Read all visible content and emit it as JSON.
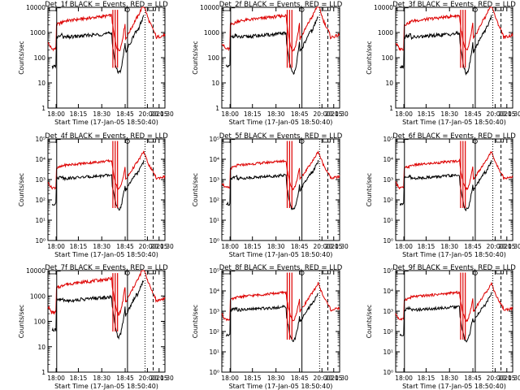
{
  "chart_data": [
    {
      "type": "line",
      "title": "Det_1f BLACK = Events, RED = LLD",
      "xlabel": "Start Time (17-Jan-05 18:50:40)",
      "ylabel": "Counts/sec",
      "x_ticks": [
        "18:00",
        "18:15",
        "18:30",
        "18:45",
        "20:00",
        "20:15",
        "20:30"
      ],
      "y_scale": "log",
      "ylim": [
        1,
        10000
      ],
      "y_ticks": [
        "1",
        "10",
        "100",
        "1000",
        "10000"
      ],
      "legend": "none",
      "grid": false,
      "colors": {
        "events": "#000000",
        "lld": "#dd0000"
      }
    },
    {
      "type": "line",
      "title": "Det_2f BLACK = Events, RED = LLD",
      "xlabel": "Start Time (17-Jan-05 18:50:40)",
      "ylabel": "Counts/sec",
      "x_ticks": [
        "18:00",
        "18:15",
        "18:30",
        "18:45",
        "20:00",
        "20:15",
        "20:30"
      ],
      "y_scale": "log",
      "ylim": [
        1,
        10000
      ],
      "y_ticks": [
        "1",
        "10",
        "100",
        "1000",
        "10000"
      ],
      "legend": "none",
      "grid": false,
      "colors": {
        "events": "#000000",
        "lld": "#dd0000"
      }
    },
    {
      "type": "line",
      "title": "Det_3f BLACK = Events, RED = LLD",
      "xlabel": "Start Time (17-Jan-05 18:50:40)",
      "ylabel": "Counts/sec",
      "x_ticks": [
        "18:00",
        "18:15",
        "18:30",
        "18:45",
        "20:00",
        "20:15",
        "20:30"
      ],
      "y_scale": "log",
      "ylim": [
        1,
        10000
      ],
      "y_ticks": [
        "1",
        "10",
        "100",
        "1000",
        "10000"
      ],
      "legend": "none",
      "grid": false,
      "colors": {
        "events": "#000000",
        "lld": "#dd0000"
      }
    },
    {
      "type": "line",
      "title": "Det_4f BLACK = Events, RED = LLD",
      "xlabel": "Start Time (17-Jan-05 18:50:40)",
      "ylabel": "Counts/sec",
      "x_ticks": [
        "18:00",
        "18:15",
        "18:30",
        "18:45",
        "20:00",
        "20:15",
        "20:30"
      ],
      "y_scale": "log",
      "ylim": [
        1,
        100000
      ],
      "y_ticks": [
        "10⁰",
        "10¹",
        "10²",
        "10³",
        "10⁴",
        "10⁵"
      ],
      "legend": "none",
      "grid": false,
      "colors": {
        "events": "#000000",
        "lld": "#dd0000"
      }
    },
    {
      "type": "line",
      "title": "Det_5f BLACK = Events, RED = LLD",
      "xlabel": "Start Time (17-Jan-05 18:50:40)",
      "ylabel": "Counts/sec",
      "x_ticks": [
        "18:00",
        "18:15",
        "18:30",
        "18:45",
        "20:00",
        "20:15",
        "20:30"
      ],
      "y_scale": "log",
      "ylim": [
        1,
        100000
      ],
      "y_ticks": [
        "10⁰",
        "10¹",
        "10²",
        "10³",
        "10⁴",
        "10⁵"
      ],
      "legend": "none",
      "grid": false,
      "colors": {
        "events": "#000000",
        "lld": "#dd0000"
      }
    },
    {
      "type": "line",
      "title": "Det_6f BLACK = Events, RED = LLD",
      "xlabel": "Start Time (17-Jan-05 18:50:40)",
      "ylabel": "Counts/sec",
      "x_ticks": [
        "18:00",
        "18:15",
        "18:30",
        "18:45",
        "20:00",
        "20:15",
        "20:30"
      ],
      "y_scale": "log",
      "ylim": [
        1,
        100000
      ],
      "y_ticks": [
        "10⁰",
        "10¹",
        "10²",
        "10³",
        "10⁴",
        "10⁵"
      ],
      "legend": "none",
      "grid": false,
      "colors": {
        "events": "#000000",
        "lld": "#dd0000"
      }
    },
    {
      "type": "line",
      "title": "Det_7f BLACK = Events, RED = LLD",
      "xlabel": "Start Time (17-Jan-05 18:50:40)",
      "ylabel": "Counts/sec",
      "x_ticks": [
        "18:00",
        "18:15",
        "18:30",
        "18:45",
        "20:00",
        "20:15",
        "20:30"
      ],
      "y_scale": "log",
      "ylim": [
        1,
        10000
      ],
      "y_ticks": [
        "1",
        "10",
        "100",
        "1000",
        "10000"
      ],
      "legend": "none",
      "grid": false,
      "colors": {
        "events": "#000000",
        "lld": "#dd0000"
      }
    },
    {
      "type": "line",
      "title": "Det_8f BLACK = Events, RED = LLD",
      "xlabel": "Start Time (17-Jan-05 18:50:40)",
      "ylabel": "Counts/sec",
      "x_ticks": [
        "18:00",
        "18:15",
        "18:30",
        "18:45",
        "20:00",
        "20:15",
        "20:30"
      ],
      "y_scale": "log",
      "ylim": [
        1,
        100000
      ],
      "y_ticks": [
        "10⁰",
        "10¹",
        "10²",
        "10³",
        "10⁴",
        "10⁵"
      ],
      "legend": "none",
      "grid": false,
      "colors": {
        "events": "#000000",
        "lld": "#dd0000"
      }
    },
    {
      "type": "line",
      "title": "Det_9f BLACK = Events, RED = LLD",
      "xlabel": "Start Time (17-Jan-05 18:50:40)",
      "ylabel": "Counts/sec",
      "x_ticks": [
        "18:00",
        "18:15",
        "18:30",
        "18:45",
        "20:00",
        "20:15",
        "20:30"
      ],
      "y_scale": "log",
      "ylim": [
        1,
        100000
      ],
      "y_ticks": [
        "10⁰",
        "10¹",
        "10²",
        "10³",
        "10⁴",
        "10⁵"
      ],
      "legend": "none",
      "grid": false,
      "colors": {
        "events": "#000000",
        "lld": "#dd0000"
      }
    }
  ]
}
